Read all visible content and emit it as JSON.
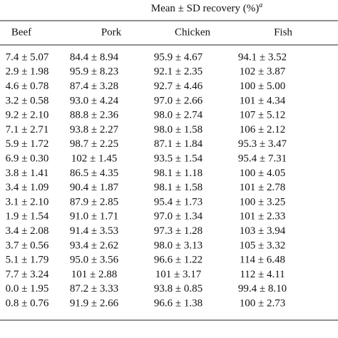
{
  "header": {
    "title": "Mean ± SD recovery (%)",
    "note": "a"
  },
  "table": {
    "columns": [
      "Beef",
      "Pork",
      "Chicken",
      "Fish"
    ],
    "rows": [
      [
        "7.4 ± 5.07",
        "84.4 ± 8.94",
        "95.9 ± 4.67",
        "94.1 ± 3.52"
      ],
      [
        "2.9 ± 1.98",
        "95.9 ± 8.23",
        "92.1 ± 2.35",
        "102 ± 3.87"
      ],
      [
        "4.6 ± 0.78",
        "87.4 ± 3.28",
        "92.7 ± 4.46",
        "100 ± 5.00"
      ],
      [
        "3.2 ± 0.58",
        "93.0 ± 4.24",
        "97.0 ± 2.66",
        "101 ± 4.34"
      ],
      [
        "9.2 ± 2.10",
        "88.8 ± 2.36",
        "98.0 ± 2.74",
        "107 ± 5.12"
      ],
      [
        "7.1 ± 2.71",
        "93.8 ± 2.27",
        "98.0 ± 1.58",
        "106 ± 2.12"
      ],
      [
        "5.9 ± 1.72",
        "98.7 ± 2.25",
        "87.1 ± 1.84",
        "95.3 ± 3.47"
      ],
      [
        "6.9 ± 0.30",
        "102 ± 1.45",
        "93.5 ± 1.54",
        "95.4 ± 7.31"
      ],
      [
        "3.8 ± 1.41",
        "86.5 ± 4.35",
        "98.1 ± 1.18",
        "100 ± 4.05"
      ],
      [
        "3.4 ± 1.09",
        "90.4 ± 1.87",
        "98.1 ± 1.58",
        "101 ± 2.78"
      ],
      [
        "3.1 ± 2.10",
        "87.9 ± 2.85",
        "95.4 ± 1.73",
        "100 ± 3.25"
      ],
      [
        "1.9 ± 1.54",
        "91.0 ± 1.71",
        "97.0 ± 1.34",
        "101 ± 2.33"
      ],
      [
        "3.4 ± 2.08",
        "91.4 ± 3.53",
        "97.3 ± 1.28",
        "103 ± 3.94"
      ],
      [
        "3.7 ± 0.56",
        "93.4 ± 2.62",
        "98.0 ± 3.13",
        "105 ± 3.32"
      ],
      [
        "5.1 ± 1.79",
        "95.0 ± 3.56",
        "96.6 ± 1.22",
        "114 ± 6.48"
      ],
      [
        "7.7 ± 3.24",
        "101 ± 2.88",
        "101 ± 3.17",
        "112 ± 4.11"
      ],
      [
        "0.0 ± 1.95",
        "87.2 ± 3.33",
        "93.8 ± 0.85",
        "99.4 ± 8.10"
      ],
      [
        "0.8 ± 0.76",
        "91.9 ± 2.66",
        "96.6 ± 1.38",
        "100 ± 2.73"
      ]
    ]
  }
}
